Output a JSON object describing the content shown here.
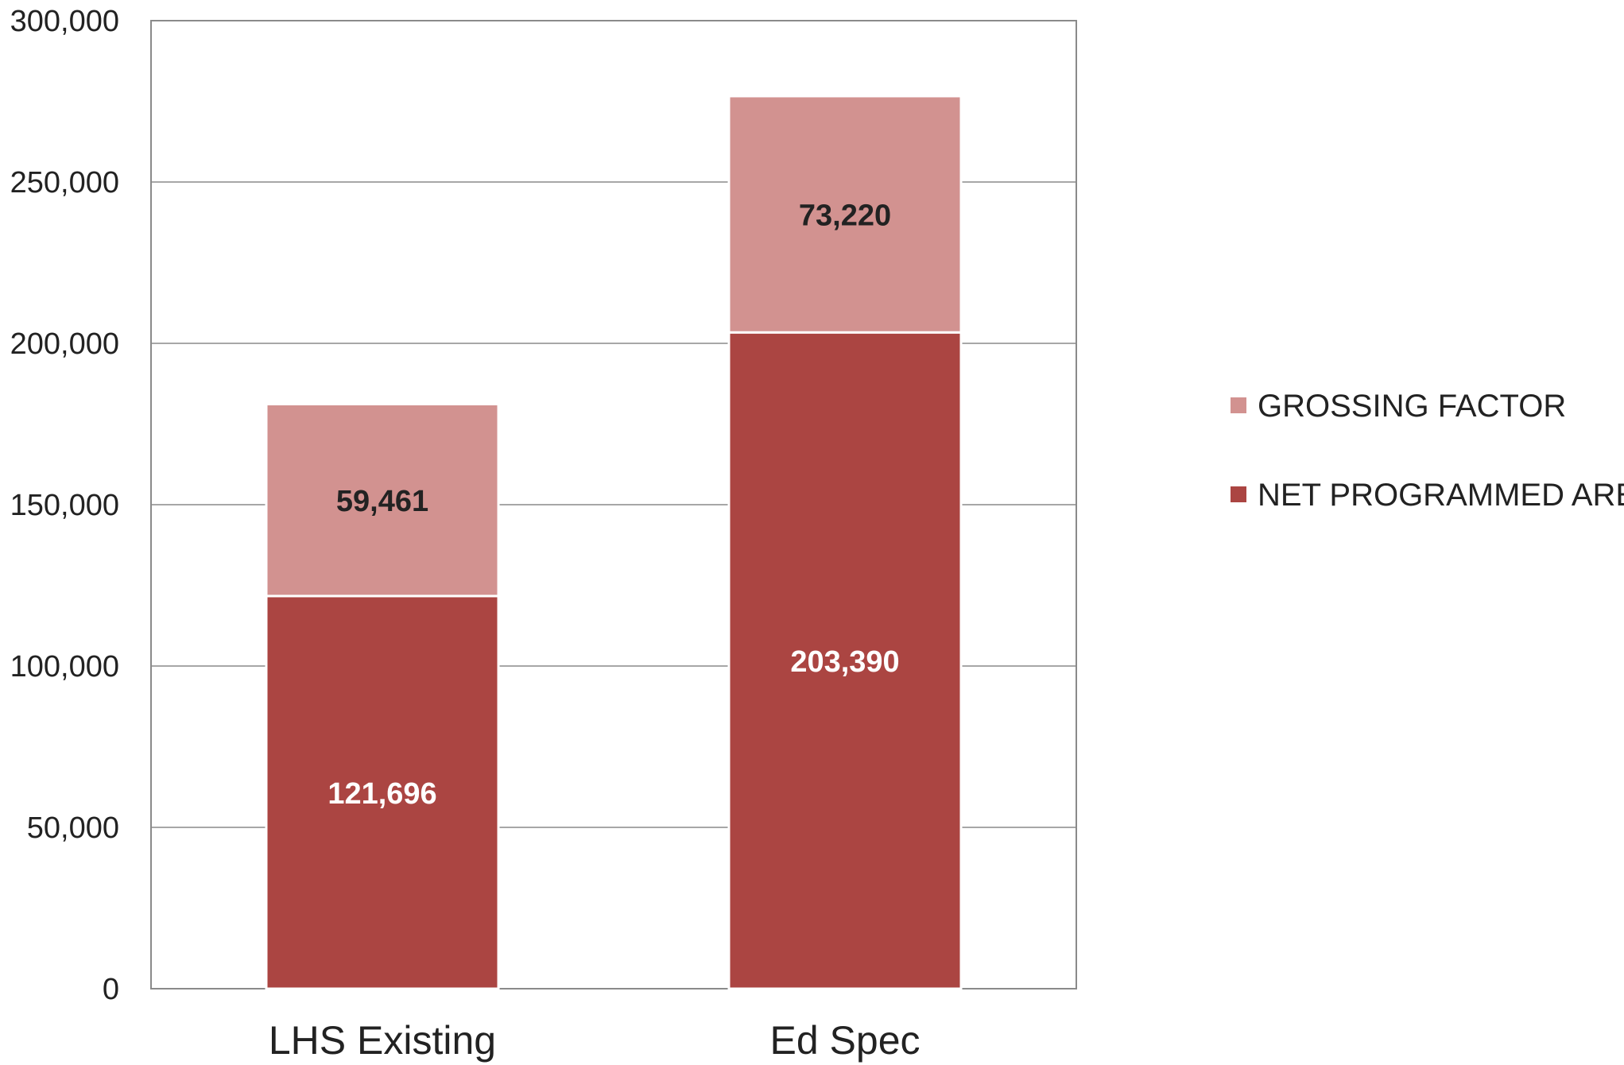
{
  "chart_data": {
    "type": "bar",
    "stacked": true,
    "categories": [
      "LHS Existing",
      "Ed Spec"
    ],
    "series": [
      {
        "name": "NET PROGRAMMED AREA",
        "values": [
          121696,
          203390
        ],
        "color": "#ab4542",
        "label_color": "#ffffff"
      },
      {
        "name": "GROSSING FACTOR",
        "values": [
          59461,
          73220
        ],
        "color": "#d29290",
        "label_color": "#222222"
      }
    ],
    "data_labels": [
      [
        "121,696",
        "203,390"
      ],
      [
        "59,461",
        "73,220"
      ]
    ],
    "ylim": [
      0,
      300000
    ],
    "yticks": [
      0,
      50000,
      100000,
      150000,
      200000,
      250000,
      300000
    ],
    "ytick_labels": [
      "0",
      "50,000",
      "100,000",
      "150,000",
      "200,000",
      "250,000",
      "300,000"
    ],
    "grid": true,
    "legend_position": "right",
    "legend_order": [
      "GROSSING FACTOR",
      "NET PROGRAMMED AREA"
    ],
    "title": "",
    "xlabel": "",
    "ylabel": ""
  }
}
